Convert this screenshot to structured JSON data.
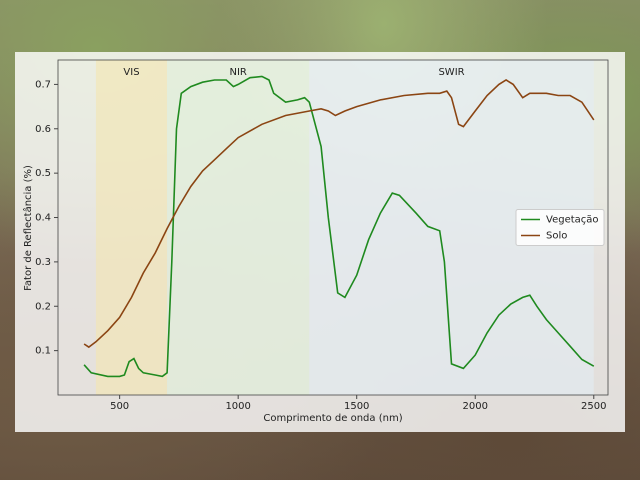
{
  "chart_data": {
    "type": "line",
    "xlabel": "Comprimento de onda (nm)",
    "ylabel": "Fator de Reflectância (%)",
    "xlim": [
      240,
      2560
    ],
    "ylim": [
      0,
      0.755
    ],
    "xticks": [
      500,
      1000,
      1500,
      2000,
      2500
    ],
    "yticks": [
      0.1,
      0.2,
      0.3,
      0.4,
      0.5,
      0.6,
      0.7
    ],
    "legend": "center right",
    "regions": [
      {
        "label": "VIS",
        "range": [
          400,
          700
        ],
        "color": "#f3e6b0"
      },
      {
        "label": "NIR",
        "range": [
          700,
          1300
        ],
        "color": "#dff0d8"
      },
      {
        "label": "SWIR",
        "range": [
          1300,
          2500
        ],
        "color": "#e3ecf3"
      }
    ],
    "series": [
      {
        "name": "Vegetação",
        "color": "#1f8a1f",
        "x": [
          350,
          380,
          450,
          500,
          520,
          540,
          560,
          580,
          600,
          650,
          680,
          700,
          720,
          740,
          760,
          800,
          850,
          900,
          950,
          980,
          1000,
          1050,
          1100,
          1130,
          1150,
          1200,
          1250,
          1280,
          1300,
          1350,
          1380,
          1420,
          1450,
          1500,
          1550,
          1600,
          1650,
          1680,
          1750,
          1800,
          1850,
          1870,
          1900,
          1950,
          2000,
          2050,
          2100,
          2150,
          2200,
          2230,
          2260,
          2300,
          2350,
          2400,
          2450,
          2500
        ],
        "values": [
          0.068,
          0.05,
          0.042,
          0.042,
          0.045,
          0.075,
          0.082,
          0.06,
          0.05,
          0.045,
          0.042,
          0.05,
          0.3,
          0.6,
          0.68,
          0.695,
          0.705,
          0.71,
          0.71,
          0.695,
          0.7,
          0.715,
          0.718,
          0.71,
          0.68,
          0.66,
          0.665,
          0.67,
          0.66,
          0.56,
          0.4,
          0.23,
          0.22,
          0.27,
          0.35,
          0.41,
          0.455,
          0.45,
          0.41,
          0.38,
          0.37,
          0.3,
          0.07,
          0.06,
          0.09,
          0.14,
          0.18,
          0.205,
          0.22,
          0.225,
          0.2,
          0.17,
          0.14,
          0.11,
          0.08,
          0.065
        ]
      },
      {
        "name": "Solo",
        "color": "#8b4513",
        "x": [
          350,
          370,
          400,
          450,
          500,
          550,
          600,
          650,
          700,
          750,
          800,
          850,
          900,
          950,
          1000,
          1100,
          1200,
          1300,
          1350,
          1380,
          1410,
          1450,
          1500,
          1600,
          1700,
          1800,
          1850,
          1880,
          1900,
          1930,
          1950,
          2000,
          2050,
          2100,
          2130,
          2160,
          2200,
          2230,
          2300,
          2350,
          2400,
          2450,
          2500
        ],
        "values": [
          0.115,
          0.108,
          0.12,
          0.145,
          0.175,
          0.22,
          0.275,
          0.32,
          0.375,
          0.425,
          0.47,
          0.505,
          0.53,
          0.555,
          0.58,
          0.61,
          0.63,
          0.64,
          0.645,
          0.64,
          0.63,
          0.64,
          0.65,
          0.665,
          0.675,
          0.68,
          0.68,
          0.685,
          0.67,
          0.61,
          0.605,
          0.64,
          0.675,
          0.7,
          0.71,
          0.7,
          0.67,
          0.68,
          0.68,
          0.675,
          0.675,
          0.66,
          0.62
        ]
      }
    ]
  }
}
